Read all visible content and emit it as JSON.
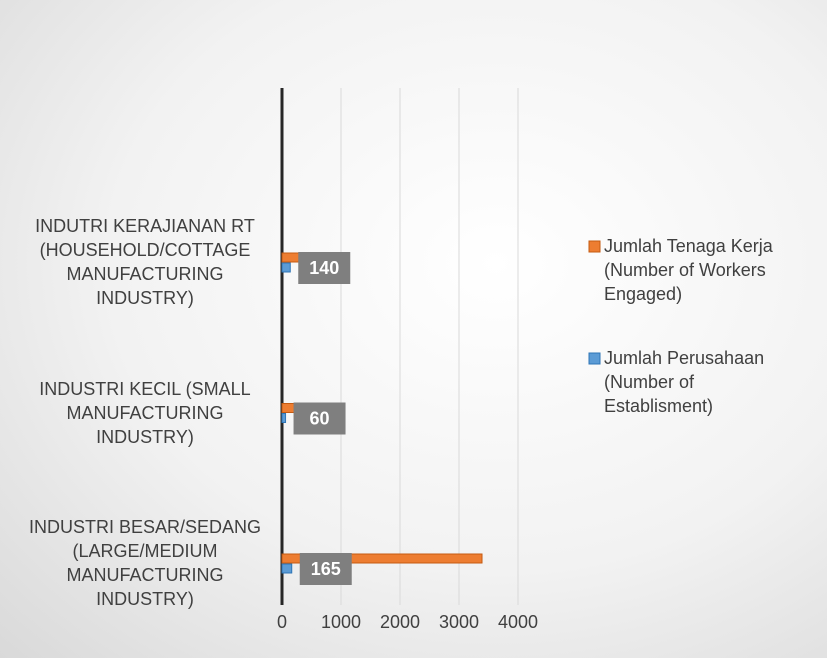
{
  "chart_data": {
    "type": "hbar",
    "categories": [
      "INDUTRI KERAJIANAN RT (HOUSEHOLD/COTTAGE MANUFACTURING INDUSTRY)",
      "INDUSTRI KECIL (SMALL MANUFACTURING INDUSTRY)",
      "INDUSTRI BESAR/SEDANG (LARGE/MEDIUM MANUFACTURING INDUSTRY)"
    ],
    "series": [
      {
        "name": "Jumlah Tenaga Kerja (Number of Workers Engaged)",
        "color": "#ed7d31",
        "values": [
          380,
          525,
          3390
        ]
      },
      {
        "name": "Jumlah Perusahaan (Number of Establisment)",
        "color": "#5b9bd5",
        "values": [
          140,
          60,
          165
        ],
        "data_labels": true
      }
    ],
    "xlim": [
      0,
      4000
    ],
    "xticks": [
      0,
      1000,
      2000,
      3000,
      4000
    ],
    "grid": true,
    "legend": "right"
  }
}
